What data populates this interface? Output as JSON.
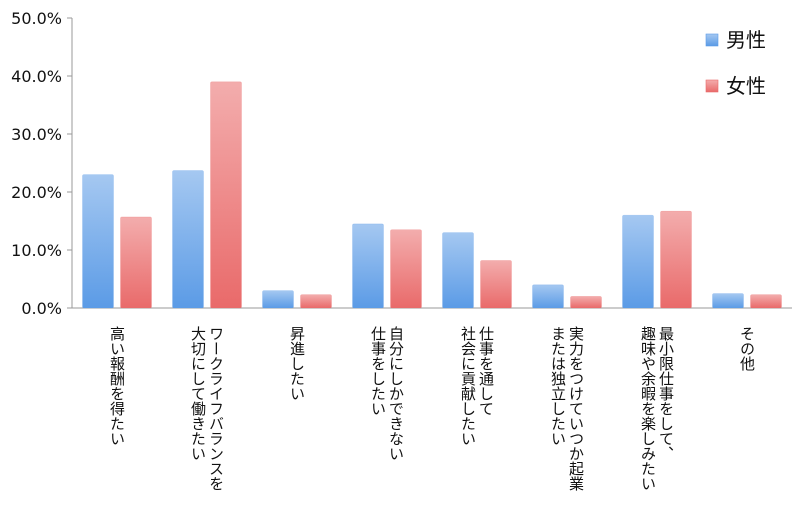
{
  "chart_data": {
    "type": "bar",
    "categories": [
      "高い報酬を得たい",
      "ワークライフバランスを\n大切にして働きたい",
      "昇進したい",
      "自分にしかできない\n仕事をしたい",
      "仕事を通して\n社会に貢献したい",
      "実力をつけていつか起業\nまたは独立したい",
      "最小限仕事をして、\n趣味や余暇を楽しみたい",
      "その他"
    ],
    "series": [
      {
        "name": "男性",
        "color": "#5b9be6",
        "values": [
          23.0,
          23.7,
          3.0,
          14.5,
          13.0,
          4.0,
          16.0,
          2.5
        ]
      },
      {
        "name": "女性",
        "color": "#e96a6a",
        "values": [
          15.7,
          39.0,
          2.3,
          13.5,
          8.2,
          2.0,
          16.7,
          2.3
        ]
      }
    ],
    "ylim": [
      0,
      50
    ],
    "yticks": [
      "0.0%",
      "10.0%",
      "20.0%",
      "30.0%",
      "40.0%",
      "50.0%"
    ],
    "title": "",
    "xlabel": "",
    "ylabel": "",
    "legend_position": "top-right",
    "grid": false
  }
}
